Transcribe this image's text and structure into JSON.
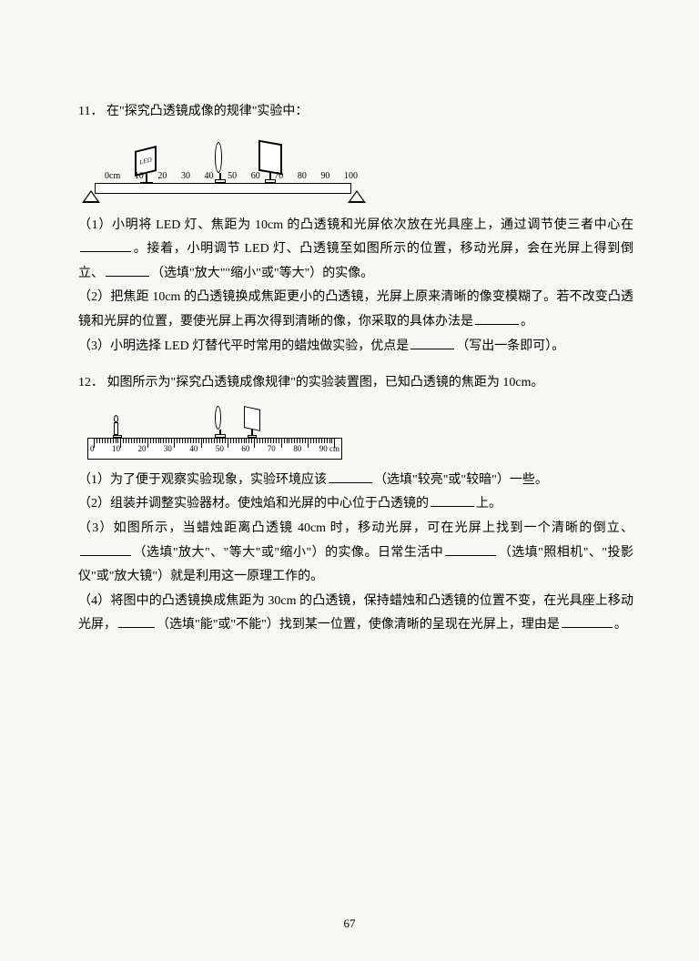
{
  "page_number": "67",
  "q11": {
    "number": "11．",
    "title": "在\"探究凸透镜成像的规律\"实验中：",
    "bench": {
      "labels": [
        "0cm",
        "10",
        "20",
        "30",
        "40",
        "50",
        "60",
        "70",
        "80",
        "90",
        "100"
      ],
      "led_text": "LED"
    },
    "sub1_a": "（1）小明将 LED 灯、焦距为 10cm 的凸透镜和光屏依次放在光具座上，通过调节使三者中心在",
    "sub1_b": "。接着，小明调节 LED 灯、凸透镜至如图所示的位置，移动光屏，会在光屏上得到倒立、",
    "sub1_c": "（选填\"放大\"\"缩小\"或\"等大\"）的实像。",
    "sub2_a": "（2）把焦距 10cm 的凸透镜换成焦距更小的凸透镜，光屏上原来清晰的像变模糊了。若不改变凸透镜和光屏的位置，要使光屏上再次得到清晰的像，你采取的具体办法是",
    "sub2_b": "。",
    "sub3_a": "（3）小明选择 LED 灯替代平时常用的蜡烛做实验，优点是",
    "sub3_b": "（写出一条即可）。"
  },
  "q12": {
    "number": "12．",
    "title": "如图所示为\"探究凸透镜成像规律\"的实验装置图，已知凸透镜的焦距为 10cm。",
    "ruler": {
      "labels": [
        "0",
        "10",
        "20",
        "30",
        "40",
        "50",
        "60",
        "70",
        "80",
        "90 cm"
      ]
    },
    "sub1_a": "（1）为了便于观察实验现象，实验环境应该",
    "sub1_b": "（选填\"较亮\"或\"较暗\"）一些。",
    "sub2_a": "（2）组装并调整实验器材。使烛焰和光屏的中心位于凸透镜的",
    "sub2_b": "上。",
    "sub3_a": "（3）如图所示，当蜡烛距离凸透镜 40cm 时，移动光屏，可在光屏上找到一个清晰的倒立、",
    "sub3_b": "（选填\"放大\"、\"等大\"或\"缩小\"）的实像。日常生活中",
    "sub3_c": "（选填\"照相机\"、\"投影仪\"或\"放大镜\"）就是利用这一原理工作的。",
    "sub4_a": "（4）将图中的凸透镜换成焦距为 30cm 的凸透镜，保持蜡烛和凸透镜的位置不变，在光具座上移动光屏，",
    "sub4_b": "（选填\"能\"或\"不能\"）找到某一位置，使像清晰的呈现在光屏上，理由是",
    "sub4_c": "。"
  }
}
